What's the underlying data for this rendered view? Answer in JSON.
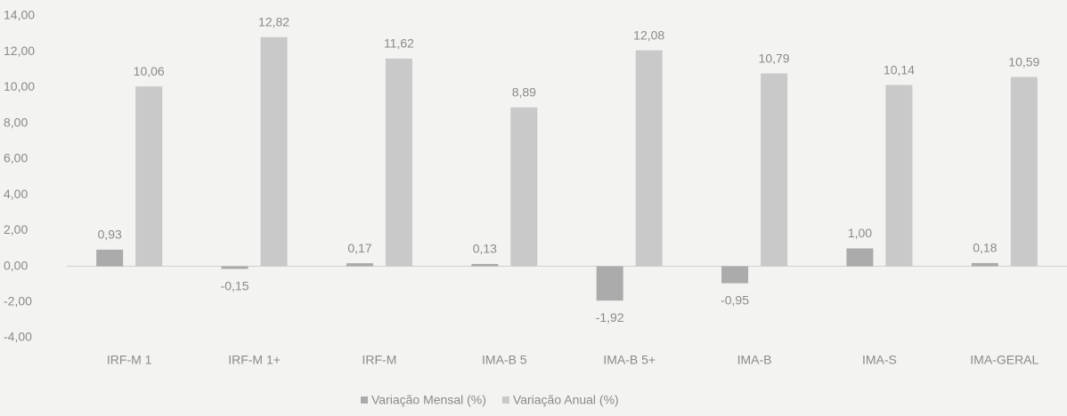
{
  "chart_data": {
    "type": "bar",
    "categories": [
      "IRF-M 1",
      "IRF-M 1+",
      "IRF-M",
      "IMA-B 5",
      "IMA-B 5+",
      "IMA-B",
      "IMA-S",
      "IMA-GERAL"
    ],
    "series": [
      {
        "name": "Variação Mensal (%)",
        "color": "#ababab",
        "values": [
          0.93,
          -0.15,
          0.17,
          0.13,
          -1.92,
          -0.95,
          1.0,
          0.18
        ],
        "value_labels": [
          "0,93",
          "-0,15",
          "0,17",
          "0,13",
          "-1,92",
          "-0,95",
          "1,00",
          "0,18"
        ]
      },
      {
        "name": "Variação Anual (%)",
        "color": "#c9c9c9",
        "values": [
          10.06,
          12.82,
          11.62,
          8.89,
          12.08,
          10.79,
          10.14,
          10.59
        ],
        "value_labels": [
          "10,06",
          "12,82",
          "11,62",
          "8,89",
          "12,08",
          "10,79",
          "10,14",
          "10,59"
        ]
      }
    ],
    "ylim": [
      -4,
      14
    ],
    "yticks": [
      {
        "value": -4,
        "label": "-4,00"
      },
      {
        "value": -2,
        "label": "-2,00"
      },
      {
        "value": 0,
        "label": "0,00"
      },
      {
        "value": 2,
        "label": "2,00"
      },
      {
        "value": 4,
        "label": "4,00"
      },
      {
        "value": 6,
        "label": "6,00"
      },
      {
        "value": 8,
        "label": "8,00"
      },
      {
        "value": 10,
        "label": "10,00"
      },
      {
        "value": 12,
        "label": "12,00"
      },
      {
        "value": 14,
        "label": "14,00"
      }
    ],
    "grid": false,
    "legend": "bottom"
  }
}
